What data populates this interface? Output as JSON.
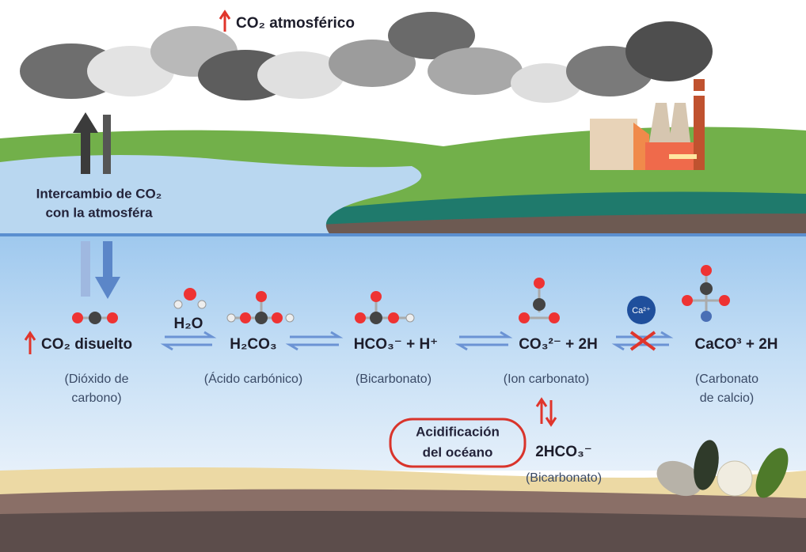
{
  "header": {
    "title": "CO₂ atmosférico"
  },
  "exchange": {
    "lines": [
      "Intercambio de CO₂",
      "con la atmosféra"
    ]
  },
  "reactant": "H₂O",
  "species": [
    {
      "formula": "CO₂ disuelto",
      "name_lines": [
        "(Dióxido de",
        "carbono)"
      ]
    },
    {
      "formula": "H₂CO₃",
      "name_lines": [
        "(Ácido carbónico)"
      ]
    },
    {
      "formula": "HCO₃⁻ + H⁺",
      "name_lines": [
        "(Bicarbonato)"
      ]
    },
    {
      "formula": "CO₃²⁻ + 2H",
      "name_lines": [
        "(Ion carbonato)"
      ]
    },
    {
      "formula": "CaCO³ + 2H",
      "name_lines": [
        "(Carbonato",
        "de calcio)"
      ]
    }
  ],
  "calcium_ion": "Ca²⁺",
  "acidification": {
    "lines": [
      "Acidificación",
      "del océano"
    ]
  },
  "bicarbonate": {
    "formula": "2HCO₃⁻",
    "name": "(Bicarbonato)"
  }
}
